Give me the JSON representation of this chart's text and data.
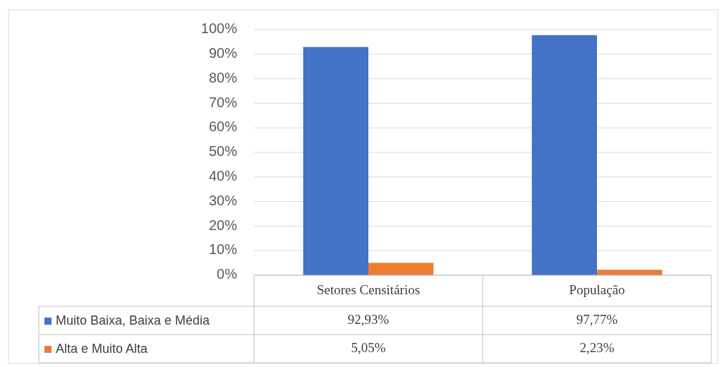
{
  "chart_data": {
    "type": "bar",
    "categories": [
      "Setores Censitários",
      "População"
    ],
    "series": [
      {
        "name": "Muito Baixa, Baixa e Média",
        "color": "#4472c4",
        "values": [
          92.93,
          97.77
        ],
        "value_labels": [
          "92,93%",
          "97,77%"
        ]
      },
      {
        "name": "Alta e Muito Alta",
        "color": "#ed7d31",
        "values": [
          5.05,
          2.23
        ],
        "value_labels": [
          "5,05%",
          "2,23%"
        ]
      }
    ],
    "ylim": [
      0,
      100
    ],
    "yticks": [
      {
        "value": 0,
        "label": "0%"
      },
      {
        "value": 10,
        "label": "10%"
      },
      {
        "value": 20,
        "label": "20%"
      },
      {
        "value": 30,
        "label": "30%"
      },
      {
        "value": 40,
        "label": "40%"
      },
      {
        "value": 50,
        "label": "50%"
      },
      {
        "value": 60,
        "label": "60%"
      },
      {
        "value": 70,
        "label": "70%"
      },
      {
        "value": 80,
        "label": "80%"
      },
      {
        "value": 90,
        "label": "90%"
      },
      {
        "value": 100,
        "label": "100%"
      }
    ],
    "grid": "y",
    "legend": "bottom"
  }
}
